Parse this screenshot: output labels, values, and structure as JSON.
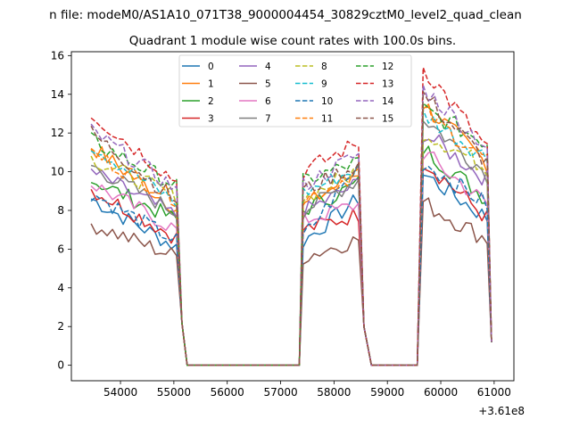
{
  "suptitle": "n file: modeM0/AS1A10_071T38_9000004454_30829cztM0_level2_quad_clean",
  "chart_data": {
    "type": "line",
    "title": "Quadrant 1 module wise count rates with 100.0s bins.",
    "xlabel": "",
    "ylabel": "",
    "x_offset_label": "+3.61e8",
    "xlim": [
      53080,
      61370
    ],
    "ylim": [
      -0.8,
      16.2
    ],
    "xticks": [
      54000,
      55000,
      56000,
      57000,
      58000,
      59000,
      60000,
      61000
    ],
    "yticks": [
      0,
      2,
      4,
      6,
      8,
      10,
      12,
      14,
      16
    ],
    "legend_position": "top-center",
    "colors": [
      "#1f77b4",
      "#ff7f0e",
      "#2ca02c",
      "#d62728",
      "#9467bd",
      "#8c564b",
      "#e377c2",
      "#7f7f7f",
      "#bcbd22",
      "#17becf",
      "#1f77b4",
      "#ff7f0e",
      "#2ca02c",
      "#d62728",
      "#9467bd",
      "#8c564b"
    ],
    "dashed_from": 8,
    "segments": [
      {
        "start": 53450,
        "end": 55050,
        "bin": 100
      },
      {
        "start": 55150,
        "end": 57350,
        "bin": 100
      },
      {
        "start": 57420,
        "end": 58460,
        "bin": 100
      },
      {
        "start": 58560,
        "end": 59560,
        "bin": 100
      },
      {
        "start": 59670,
        "end": 60870,
        "bin": 100
      }
    ],
    "series": [
      {
        "name": "0",
        "a": [
          8.6,
          6.1
        ],
        "b": [
          6.4,
          8.6
        ],
        "c": [
          9.9,
          7.6
        ]
      },
      {
        "name": "1",
        "a": [
          11.3,
          8.1
        ],
        "b": [
          8.2,
          10.0
        ],
        "c": [
          13.5,
          10.4
        ]
      },
      {
        "name": "2",
        "a": [
          9.6,
          7.5
        ],
        "b": [
          8.0,
          9.4
        ],
        "c": [
          11.2,
          8.6
        ]
      },
      {
        "name": "3",
        "a": [
          9.1,
          6.6
        ],
        "b": [
          7.0,
          7.8
        ],
        "c": [
          10.6,
          7.6
        ]
      },
      {
        "name": "4",
        "a": [
          10.0,
          7.7
        ],
        "b": [
          7.9,
          9.4
        ],
        "c": [
          12.0,
          9.6
        ]
      },
      {
        "name": "5",
        "a": [
          7.3,
          5.6
        ],
        "b": [
          5.6,
          6.5
        ],
        "c": [
          8.4,
          6.5
        ]
      },
      {
        "name": "6",
        "a": [
          9.4,
          7.0
        ],
        "b": [
          7.5,
          8.3
        ],
        "c": [
          11.0,
          8.3
        ]
      },
      {
        "name": "7",
        "a": [
          10.3,
          7.9
        ],
        "b": [
          8.0,
          9.6
        ],
        "c": [
          12.8,
          9.9
        ]
      },
      {
        "name": "8",
        "a": [
          10.7,
          8.7
        ],
        "b": [
          8.6,
          10.1
        ],
        "c": [
          12.1,
          10.2
        ]
      },
      {
        "name": "9",
        "a": [
          11.4,
          8.4
        ],
        "b": [
          8.9,
          10.2
        ],
        "c": [
          13.0,
          10.7
        ]
      },
      {
        "name": "10",
        "a": [
          8.9,
          6.4
        ],
        "b": [
          6.6,
          10.3
        ],
        "c": [
          10.5,
          8.3
        ]
      },
      {
        "name": "11",
        "a": [
          11.0,
          8.6
        ],
        "b": [
          8.5,
          10.0
        ],
        "c": [
          13.1,
          10.6
        ]
      },
      {
        "name": "12",
        "a": [
          11.6,
          9.3
        ],
        "b": [
          9.5,
          10.5
        ],
        "c": [
          13.2,
          11.5
        ]
      },
      {
        "name": "13",
        "a": [
          13.0,
          9.5
        ],
        "b": [
          10.0,
          11.5
        ],
        "c": [
          15.4,
          11.2
        ]
      },
      {
        "name": "14",
        "a": [
          12.1,
          9.1
        ],
        "b": [
          9.3,
          10.9
        ],
        "c": [
          14.3,
          11.3
        ]
      },
      {
        "name": "15",
        "a": [
          12.0,
          8.5
        ],
        "b": [
          9.0,
          10.4
        ],
        "c": [
          14.0,
          10.5
        ]
      }
    ]
  }
}
